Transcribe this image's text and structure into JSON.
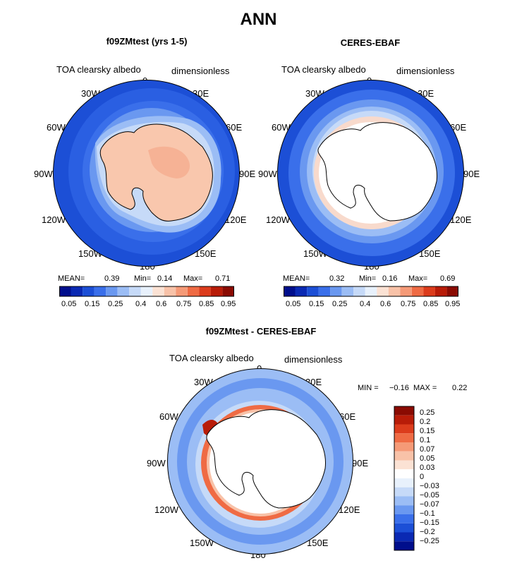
{
  "figure_title": "ANN",
  "colors": {
    "seq_colorbar": [
      "#000e8c",
      "#0a29b3",
      "#1c4fd6",
      "#3a6fea",
      "#6a98f0",
      "#9bbdf5",
      "#c6daf8",
      "#e8f1fc",
      "#fbe2d4",
      "#f8c2a8",
      "#f59a77",
      "#ef6b44",
      "#dc3c1c",
      "#b81c08",
      "#8a0b02"
    ],
    "diff_colorbar": [
      "#8a0b02",
      "#b81c08",
      "#dc3c1c",
      "#ef6b44",
      "#f59a77",
      "#f8c2a8",
      "#fbe2d4",
      "#ffffff",
      "#e8f1fc",
      "#c6daf8",
      "#9bbdf5",
      "#6a98f0",
      "#3a6fea",
      "#1c4fd6",
      "#0a29b3",
      "#000e8c"
    ]
  },
  "panels": [
    {
      "title": "f09ZMtest (yrs 1-5)",
      "variable": "TOA clearsky albedo",
      "units": "dimensionless",
      "lon_labels": [
        "0",
        "30E",
        "60E",
        "90E",
        "120E",
        "150E",
        "180",
        "150W",
        "120W",
        "90W",
        "60W",
        "30W"
      ],
      "stats": {
        "mean_label": "MEAN=",
        "mean": "0.39",
        "min_label": "Min=",
        "min": "0.14",
        "max_label": "Max=",
        "max": "0.71"
      },
      "colorbar_labels": [
        "0.05",
        "0.15",
        "0.25",
        "0.4",
        "0.6",
        "0.75",
        "0.85",
        "0.95"
      ]
    },
    {
      "title": "CERES-EBAF",
      "variable": "TOA clearsky albedo",
      "units": "dimensionless",
      "lon_labels": [
        "0",
        "30E",
        "60E",
        "90E",
        "120E",
        "150E",
        "180",
        "150W",
        "120W",
        "90W",
        "60W",
        "30W"
      ],
      "stats": {
        "mean_label": "MEAN=",
        "mean": "0.32",
        "min_label": "Min=",
        "min": "0.16",
        "max_label": "Max=",
        "max": "0.69"
      },
      "colorbar_labels": [
        "0.05",
        "0.15",
        "0.25",
        "0.4",
        "0.6",
        "0.75",
        "0.85",
        "0.95"
      ]
    },
    {
      "title": "f09ZMtest - CERES-EBAF",
      "variable": "TOA clearsky albedo",
      "units": "dimensionless",
      "lon_labels": [
        "0",
        "30E",
        "60E",
        "90E",
        "120E",
        "150E",
        "180",
        "150W",
        "120W",
        "90W",
        "60W",
        "30W"
      ],
      "stats": {
        "min_label": "MIN =",
        "min": "−0.16",
        "max_label": "MAX =",
        "max": "0.22"
      },
      "colorbar_labels": [
        "0.25",
        "0.2",
        "0.15",
        "0.1",
        "0.07",
        "0.05",
        "0.03",
        "0",
        "−0.03",
        "−0.05",
        "−0.07",
        "−0.1",
        "−0.15",
        "−0.2",
        "−0.25"
      ]
    }
  ]
}
